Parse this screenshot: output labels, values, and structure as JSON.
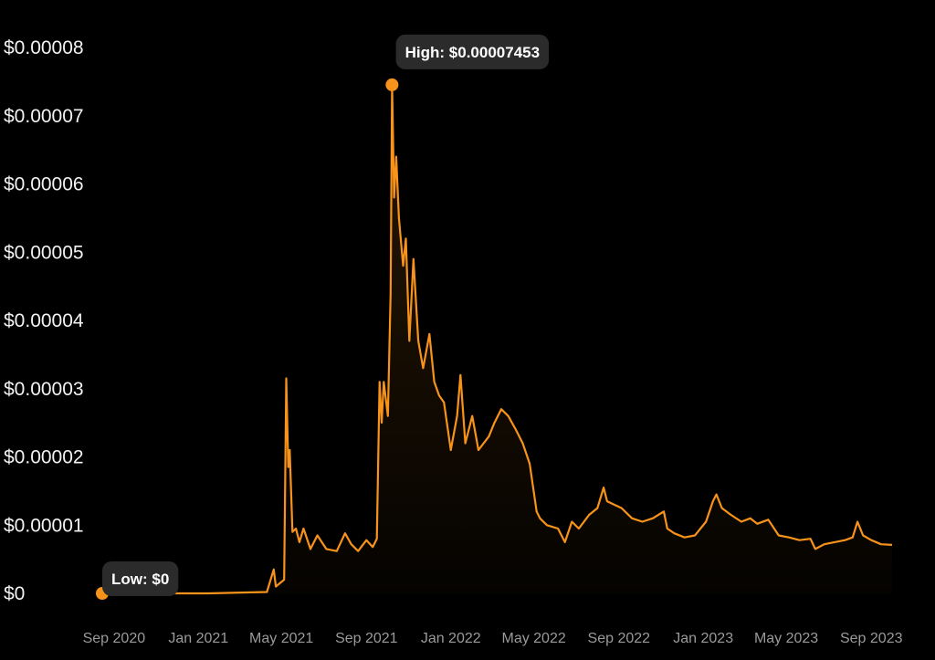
{
  "chart_data": {
    "type": "area",
    "ylim": [
      0,
      8e-05
    ],
    "y_tick_values": [
      0,
      1e-05,
      2e-05,
      3e-05,
      4e-05,
      5e-05,
      6e-05,
      7e-05,
      8e-05
    ],
    "y_tick_labels": [
      "$0",
      "$0.00001",
      "$0.00002",
      "$0.00003",
      "$0.00004",
      "$0.00005",
      "$0.00006",
      "$0.00007",
      "$0.00008"
    ],
    "x_range": [
      "2020-08-15",
      "2023-10-05"
    ],
    "x_tick_labels": [
      "Sep 2020",
      "Jan 2021",
      "May 2021",
      "Sep 2021",
      "Jan 2022",
      "May 2022",
      "Sep 2022",
      "Jan 2023",
      "May 2023",
      "Sep 2023"
    ],
    "x_tick_dates": [
      "2020-09-01",
      "2021-01-01",
      "2021-05-01",
      "2021-09-01",
      "2022-01-01",
      "2022-05-01",
      "2022-09-01",
      "2023-01-01",
      "2023-05-01",
      "2023-09-01"
    ],
    "grid": false,
    "series": [
      {
        "color": "#f7931a",
        "points": [
          [
            "2020-08-15",
            0
          ],
          [
            "2020-09-15",
            0
          ],
          [
            "2021-01-15",
            0
          ],
          [
            "2021-04-10",
            2e-07
          ],
          [
            "2021-04-20",
            3.5e-06
          ],
          [
            "2021-04-23",
            1e-06
          ],
          [
            "2021-05-05",
            2e-06
          ],
          [
            "2021-05-08",
            3.15e-05
          ],
          [
            "2021-05-11",
            1.85e-05
          ],
          [
            "2021-05-13",
            2.1e-05
          ],
          [
            "2021-05-17",
            9e-06
          ],
          [
            "2021-05-22",
            9.5e-06
          ],
          [
            "2021-05-27",
            7.5e-06
          ],
          [
            "2021-06-02",
            9.5e-06
          ],
          [
            "2021-06-12",
            6.5e-06
          ],
          [
            "2021-06-22",
            8.5e-06
          ],
          [
            "2021-07-05",
            6.5e-06
          ],
          [
            "2021-07-20",
            6.2e-06
          ],
          [
            "2021-08-01",
            8.8e-06
          ],
          [
            "2021-08-10",
            7.2e-06
          ],
          [
            "2021-08-20",
            6.2e-06
          ],
          [
            "2021-09-01",
            7.8e-06
          ],
          [
            "2021-09-10",
            6.8e-06
          ],
          [
            "2021-09-16",
            8e-06
          ],
          [
            "2021-09-20",
            3.1e-05
          ],
          [
            "2021-09-23",
            2.5e-05
          ],
          [
            "2021-09-26",
            3.1e-05
          ],
          [
            "2021-10-02",
            2.6e-05
          ],
          [
            "2021-10-06",
            4.4e-05
          ],
          [
            "2021-10-08",
            7.453e-05
          ],
          [
            "2021-10-11",
            5.8e-05
          ],
          [
            "2021-10-14",
            6.4e-05
          ],
          [
            "2021-10-18",
            5.5e-05
          ],
          [
            "2021-10-24",
            4.8e-05
          ],
          [
            "2021-10-28",
            5.2e-05
          ],
          [
            "2021-11-02",
            3.7e-05
          ],
          [
            "2021-11-08",
            4.9e-05
          ],
          [
            "2021-11-15",
            3.7e-05
          ],
          [
            "2021-11-22",
            3.3e-05
          ],
          [
            "2021-12-01",
            3.8e-05
          ],
          [
            "2021-12-08",
            3.1e-05
          ],
          [
            "2021-12-15",
            2.9e-05
          ],
          [
            "2021-12-22",
            2.8e-05
          ],
          [
            "2022-01-01",
            2.1e-05
          ],
          [
            "2022-01-10",
            2.6e-05
          ],
          [
            "2022-01-15",
            3.2e-05
          ],
          [
            "2022-01-22",
            2.2e-05
          ],
          [
            "2022-02-01",
            2.6e-05
          ],
          [
            "2022-02-10",
            2.1e-05
          ],
          [
            "2022-02-25",
            2.3e-05
          ],
          [
            "2022-03-05",
            2.5e-05
          ],
          [
            "2022-03-15",
            2.7e-05
          ],
          [
            "2022-03-25",
            2.6e-05
          ],
          [
            "2022-04-05",
            2.4e-05
          ],
          [
            "2022-04-15",
            2.2e-05
          ],
          [
            "2022-04-25",
            1.9e-05
          ],
          [
            "2022-05-05",
            1.2e-05
          ],
          [
            "2022-05-10",
            1.1e-05
          ],
          [
            "2022-05-20",
            1e-05
          ],
          [
            "2022-06-05",
            9.5e-06
          ],
          [
            "2022-06-15",
            7.5e-06
          ],
          [
            "2022-06-25",
            1.05e-05
          ],
          [
            "2022-07-05",
            9.5e-06
          ],
          [
            "2022-07-20",
            1.15e-05
          ],
          [
            "2022-08-01",
            1.25e-05
          ],
          [
            "2022-08-10",
            1.55e-05
          ],
          [
            "2022-08-15",
            1.35e-05
          ],
          [
            "2022-08-25",
            1.3e-05
          ],
          [
            "2022-09-05",
            1.25e-05
          ],
          [
            "2022-09-20",
            1.1e-05
          ],
          [
            "2022-10-05",
            1.05e-05
          ],
          [
            "2022-10-20",
            1.1e-05
          ],
          [
            "2022-11-05",
            1.2e-05
          ],
          [
            "2022-11-10",
            9.5e-06
          ],
          [
            "2022-11-20",
            8.8e-06
          ],
          [
            "2022-12-05",
            8.2e-06
          ],
          [
            "2022-12-20",
            8.5e-06
          ],
          [
            "2023-01-05",
            1.05e-05
          ],
          [
            "2023-01-15",
            1.35e-05
          ],
          [
            "2023-01-20",
            1.45e-05
          ],
          [
            "2023-01-28",
            1.25e-05
          ],
          [
            "2023-02-10",
            1.15e-05
          ],
          [
            "2023-02-25",
            1.05e-05
          ],
          [
            "2023-03-10",
            1.1e-05
          ],
          [
            "2023-03-20",
            1.02e-05
          ],
          [
            "2023-04-05",
            1.08e-05
          ],
          [
            "2023-04-20",
            8.5e-06
          ],
          [
            "2023-05-05",
            8.2e-06
          ],
          [
            "2023-05-20",
            7.8e-06
          ],
          [
            "2023-06-05",
            8e-06
          ],
          [
            "2023-06-12",
            6.5e-06
          ],
          [
            "2023-06-25",
            7.2e-06
          ],
          [
            "2023-07-10",
            7.5e-06
          ],
          [
            "2023-07-25",
            7.8e-06
          ],
          [
            "2023-08-05",
            8.2e-06
          ],
          [
            "2023-08-12",
            1.05e-05
          ],
          [
            "2023-08-20",
            8.5e-06
          ],
          [
            "2023-09-01",
            7.8e-06
          ],
          [
            "2023-09-15",
            7.2e-06
          ],
          [
            "2023-10-01",
            7.1e-06
          ]
        ]
      }
    ],
    "annotations": {
      "high": {
        "label": "High: $0.00007453",
        "date": "2021-10-08",
        "value": 7.453e-05
      },
      "low": {
        "label": "Low: $0",
        "date": "2020-08-15",
        "value": 0
      }
    }
  }
}
